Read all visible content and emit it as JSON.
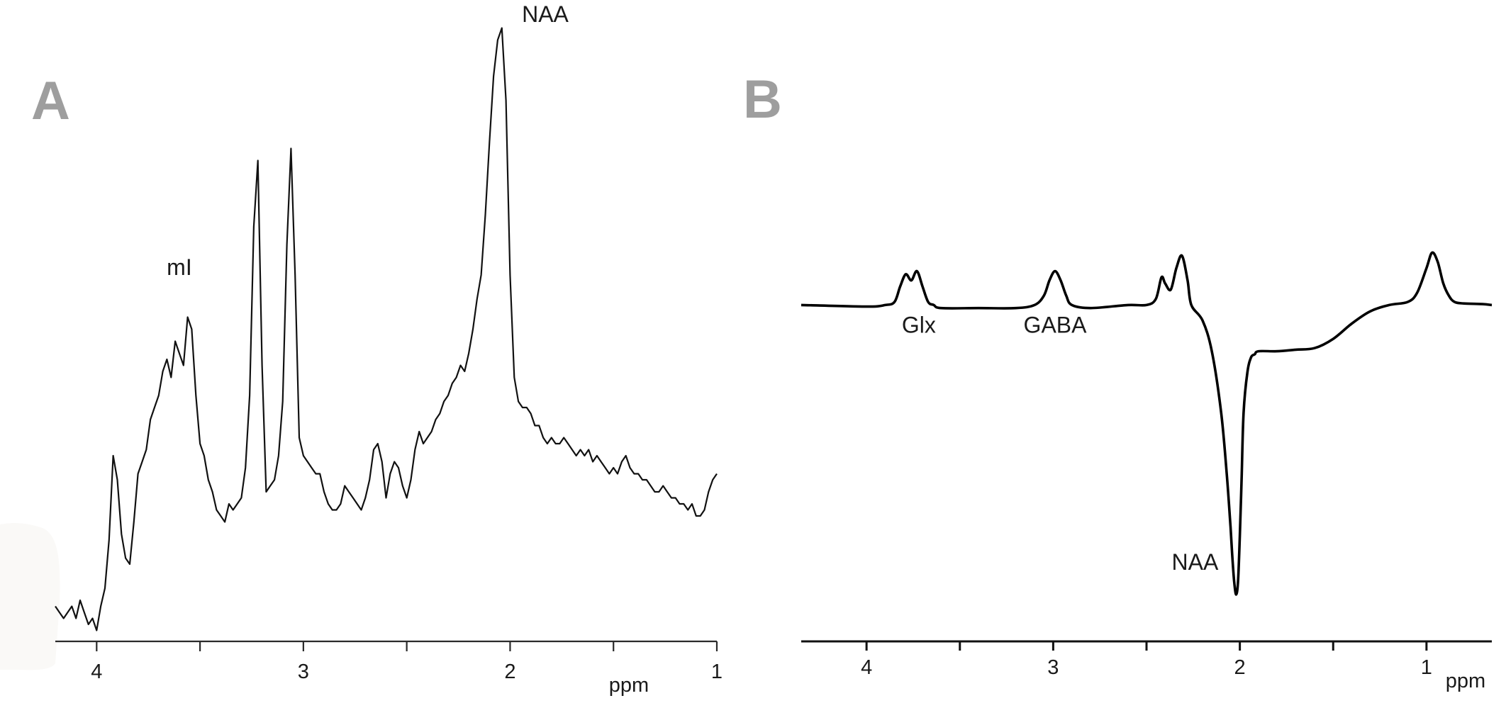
{
  "panels": {
    "a": {
      "letter": "A"
    },
    "b": {
      "letter": "B"
    }
  },
  "chart_data": [
    {
      "type": "line",
      "panel": "A",
      "xlabel": "ppm",
      "xlim": [
        4.2,
        1.0
      ],
      "x_reversed": true,
      "xticks": [
        4,
        3,
        2,
        1
      ],
      "xtick_labels": [
        "4",
        "3",
        "2",
        "1"
      ],
      "minor_xticks": [
        3.5,
        2.5,
        1.5
      ],
      "ylim": [
        0,
        100
      ],
      "y_axis_visible": false,
      "annotations": [
        {
          "text": "mI",
          "x": 3.6,
          "y": 60
        },
        {
          "text": "NAA",
          "x": 1.83,
          "y": 102
        }
      ],
      "series": [
        {
          "x": [
            4.2,
            4.18,
            4.16,
            4.14,
            4.12,
            4.1,
            4.08,
            4.06,
            4.04,
            4.02,
            4.0,
            3.98,
            3.96,
            3.94,
            3.92,
            3.9,
            3.88,
            3.86,
            3.84,
            3.82,
            3.8,
            3.78,
            3.76,
            3.74,
            3.72,
            3.7,
            3.68,
            3.66,
            3.64,
            3.62,
            3.6,
            3.58,
            3.56,
            3.54,
            3.52,
            3.5,
            3.48,
            3.46,
            3.44,
            3.42,
            3.4,
            3.38,
            3.36,
            3.34,
            3.32,
            3.3,
            3.28,
            3.26,
            3.24,
            3.22,
            3.2,
            3.18,
            3.16,
            3.14,
            3.12,
            3.1,
            3.08,
            3.06,
            3.04,
            3.02,
            3.0,
            2.98,
            2.96,
            2.94,
            2.92,
            2.9,
            2.88,
            2.86,
            2.84,
            2.82,
            2.8,
            2.78,
            2.76,
            2.74,
            2.72,
            2.7,
            2.68,
            2.66,
            2.64,
            2.62,
            2.6,
            2.58,
            2.56,
            2.54,
            2.52,
            2.5,
            2.48,
            2.46,
            2.44,
            2.42,
            2.4,
            2.38,
            2.36,
            2.34,
            2.32,
            2.3,
            2.28,
            2.26,
            2.24,
            2.22,
            2.2,
            2.18,
            2.16,
            2.14,
            2.12,
            2.1,
            2.08,
            2.06,
            2.04,
            2.02,
            2.0,
            1.98,
            1.96,
            1.94,
            1.92,
            1.9,
            1.88,
            1.86,
            1.84,
            1.82,
            1.8,
            1.78,
            1.76,
            1.74,
            1.72,
            1.7,
            1.68,
            1.66,
            1.64,
            1.62,
            1.6,
            1.58,
            1.56,
            1.54,
            1.52,
            1.5,
            1.48,
            1.46,
            1.44,
            1.42,
            1.4,
            1.38,
            1.36,
            1.34,
            1.32,
            1.3,
            1.28,
            1.26,
            1.24,
            1.22,
            1.2,
            1.18,
            1.16,
            1.14,
            1.12,
            1.1,
            1.08,
            1.06,
            1.04,
            1.02,
            1.0
          ],
          "y": [
            5,
            4,
            3,
            4,
            5,
            3,
            6,
            4,
            2,
            3,
            1,
            5,
            8,
            16,
            30,
            26,
            17,
            13,
            12,
            19,
            27,
            29,
            31,
            36,
            38,
            40,
            44,
            46,
            43,
            49,
            47,
            45,
            53,
            51,
            40,
            32,
            30,
            26,
            24,
            21,
            20,
            19,
            22,
            21,
            22,
            23,
            28,
            40,
            68,
            79,
            45,
            24,
            25,
            26,
            30,
            39,
            65,
            81,
            60,
            33,
            30,
            29,
            28,
            27,
            27,
            24,
            22,
            21,
            21,
            22,
            25,
            24,
            23,
            22,
            21,
            23,
            26,
            31,
            32,
            29,
            23,
            27,
            29,
            28,
            25,
            23,
            26,
            31,
            34,
            32,
            33,
            34,
            36,
            37,
            39,
            40,
            42,
            43,
            45,
            44,
            47,
            51,
            56,
            60,
            70,
            82,
            93,
            99,
            101,
            89,
            60,
            43,
            39,
            38,
            38,
            37,
            35,
            35,
            33,
            32,
            33,
            32,
            32,
            33,
            32,
            31,
            30,
            31,
            30,
            31,
            29,
            30,
            29,
            28,
            27,
            28,
            27,
            29,
            30,
            28,
            27,
            27,
            26,
            26,
            25,
            24,
            24,
            25,
            24,
            23,
            23,
            22,
            22,
            21,
            22,
            20,
            20,
            21,
            24,
            26,
            27
          ]
        }
      ]
    },
    {
      "type": "line",
      "panel": "B",
      "xlabel": "ppm",
      "xlim": [
        4.35,
        0.65
      ],
      "x_reversed": true,
      "xticks": [
        4,
        3,
        2,
        1
      ],
      "xtick_labels": [
        "4",
        "3",
        "2",
        "1"
      ],
      "minor_xticks": [
        3.5,
        2.5,
        1.5
      ],
      "ylim": [
        -100,
        30
      ],
      "y_axis_visible": false,
      "annotations": [
        {
          "text": "Glx",
          "x": 3.72,
          "y": -9
        },
        {
          "text": "GABA",
          "x": 2.99,
          "y": -9
        },
        {
          "text": "NAA",
          "x": 2.24,
          "y": -86
        }
      ],
      "series": [
        {
          "x": [
            4.35,
            4.0,
            3.9,
            3.85,
            3.82,
            3.79,
            3.76,
            3.73,
            3.7,
            3.67,
            3.64,
            3.6,
            3.4,
            3.2,
            3.1,
            3.05,
            3.02,
            2.99,
            2.96,
            2.93,
            2.9,
            2.8,
            2.6,
            2.5,
            2.45,
            2.42,
            2.4,
            2.37,
            2.34,
            2.31,
            2.28,
            2.26,
            2.2,
            2.15,
            2.1,
            2.07,
            2.05,
            2.04,
            2.03,
            2.02,
            2.01,
            2.0,
            1.99,
            1.98,
            1.96,
            1.94,
            1.92,
            1.9,
            1.8,
            1.7,
            1.6,
            1.5,
            1.4,
            1.3,
            1.2,
            1.1,
            1.05,
            1.0,
            0.97,
            0.94,
            0.91,
            0.88,
            0.85,
            0.8,
            0.7,
            0.65
          ],
          "y": [
            0,
            -0.5,
            0,
            1,
            6,
            10,
            8,
            11,
            6,
            1,
            0,
            -1,
            -1,
            -1,
            0,
            3,
            8,
            11,
            8,
            3,
            0,
            -1,
            0,
            0,
            2,
            9,
            7,
            5,
            12,
            16,
            8,
            0,
            -5,
            -15,
            -35,
            -55,
            -72,
            -82,
            -90,
            -94,
            -90,
            -75,
            -55,
            -35,
            -22,
            -17,
            -16,
            -15,
            -15,
            -14.5,
            -14,
            -11,
            -6,
            -2,
            0,
            1,
            4,
            12,
            17,
            14,
            7,
            3,
            1,
            0.5,
            0.3,
            0
          ]
        }
      ]
    }
  ]
}
